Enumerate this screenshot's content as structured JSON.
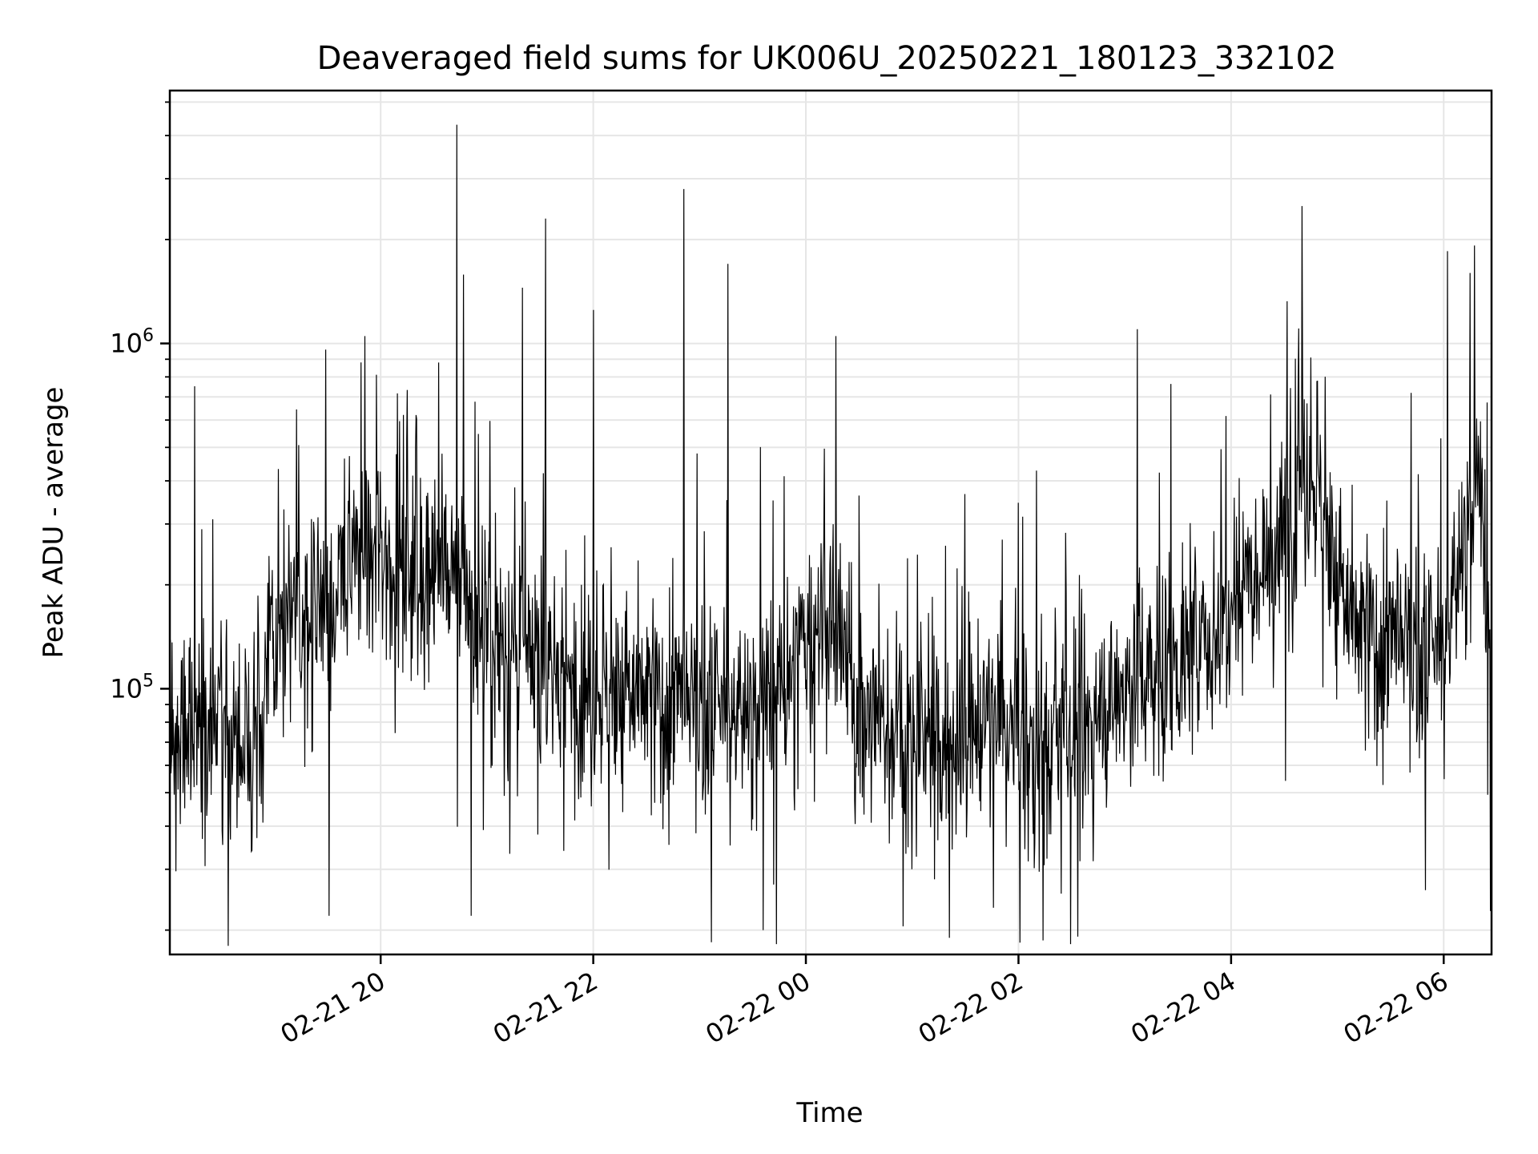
{
  "chart_data": {
    "type": "line",
    "title": "Deaveraged field sums for UK006U_20250221_180123_332102",
    "xlabel": "Time",
    "ylabel": "Peak ADU - average",
    "y_scale": "log",
    "ylim": [
      17000,
      5400000
    ],
    "xlim": [
      "2025-02-21 18:01",
      "2025-02-22 06:27"
    ],
    "grid": true,
    "line_color": "#000000",
    "grid_color": "#e6e6e6",
    "x_ticks": [
      {
        "value": "2025-02-21 20:00",
        "label": "02-21 20"
      },
      {
        "value": "2025-02-21 22:00",
        "label": "02-21 22"
      },
      {
        "value": "2025-02-22 00:00",
        "label": "02-22 00"
      },
      {
        "value": "2025-02-22 02:00",
        "label": "02-22 02"
      },
      {
        "value": "2025-02-22 04:00",
        "label": "02-22 04"
      },
      {
        "value": "2025-02-22 06:00",
        "label": "02-22 06"
      }
    ],
    "y_ticks": [
      {
        "value": 100000,
        "base": "10",
        "exp": "5"
      },
      {
        "value": 1000000,
        "base": "10",
        "exp": "6"
      }
    ],
    "series": [
      {
        "x": [
          "2025-02-21 18:01",
          "2025-02-21 18:10",
          "2025-02-21 18:20",
          "2025-02-21 18:30",
          "2025-02-21 18:40",
          "2025-02-21 18:50",
          "2025-02-21 19:00",
          "2025-02-21 19:10",
          "2025-02-21 19:20",
          "2025-02-21 19:30",
          "2025-02-21 19:40",
          "2025-02-21 19:50",
          "2025-02-21 20:00",
          "2025-02-21 20:10",
          "2025-02-21 20:20",
          "2025-02-21 20:30",
          "2025-02-21 20:40",
          "2025-02-21 20:50",
          "2025-02-21 21:00",
          "2025-02-21 21:10",
          "2025-02-21 21:20",
          "2025-02-21 21:30",
          "2025-02-21 21:40",
          "2025-02-21 21:50",
          "2025-02-21 22:00",
          "2025-02-21 22:10",
          "2025-02-21 22:20",
          "2025-02-21 22:30",
          "2025-02-21 22:40",
          "2025-02-21 22:50",
          "2025-02-21 23:00",
          "2025-02-21 23:10",
          "2025-02-21 23:20",
          "2025-02-21 23:30",
          "2025-02-21 23:40",
          "2025-02-21 23:50",
          "2025-02-22 00:00",
          "2025-02-22 00:10",
          "2025-02-22 00:20",
          "2025-02-22 00:30",
          "2025-02-22 00:40",
          "2025-02-22 00:50",
          "2025-02-22 01:00",
          "2025-02-22 01:10",
          "2025-02-22 01:20",
          "2025-02-22 01:30",
          "2025-02-22 01:40",
          "2025-02-22 01:50",
          "2025-02-22 02:00",
          "2025-02-22 02:10",
          "2025-02-22 02:20",
          "2025-02-22 02:30",
          "2025-02-22 02:40",
          "2025-02-22 02:50",
          "2025-02-22 03:00",
          "2025-02-22 03:10",
          "2025-02-22 03:20",
          "2025-02-22 03:30",
          "2025-02-22 03:40",
          "2025-02-22 03:50",
          "2025-02-22 04:00",
          "2025-02-22 04:10",
          "2025-02-22 04:20",
          "2025-02-22 04:30",
          "2025-02-22 04:40",
          "2025-02-22 04:50",
          "2025-02-22 05:00",
          "2025-02-22 05:10",
          "2025-02-22 05:20",
          "2025-02-22 05:30",
          "2025-02-22 05:40",
          "2025-02-22 05:50",
          "2025-02-22 06:00",
          "2025-02-22 06:10",
          "2025-02-22 06:20",
          "2025-02-22 06:27"
        ],
        "y": [
          60000,
          90000,
          85000,
          80000,
          75000,
          90000,
          130000,
          150000,
          170000,
          200000,
          190000,
          240000,
          250000,
          230000,
          240000,
          220000,
          210000,
          170000,
          150000,
          130000,
          120000,
          115000,
          110000,
          105000,
          100000,
          100000,
          95000,
          95000,
          90000,
          90000,
          85000,
          85000,
          85000,
          90000,
          95000,
          100000,
          140000,
          150000,
          130000,
          90000,
          80000,
          75000,
          70000,
          70000,
          70000,
          75000,
          80000,
          80000,
          70000,
          65000,
          70000,
          75000,
          80000,
          90000,
          100000,
          110000,
          110000,
          120000,
          130000,
          140000,
          200000,
          230000,
          250000,
          260000,
          450000,
          380000,
          200000,
          150000,
          140000,
          130000,
          130000,
          120000,
          130000,
          250000,
          400000,
          120000
        ],
        "peaks": [
          {
            "x": "2025-02-21 19:51",
            "y": 1050000
          },
          {
            "x": "2025-02-21 20:43",
            "y": 4300000
          },
          {
            "x": "2025-02-21 21:33",
            "y": 2300000
          },
          {
            "x": "2025-02-21 21:20",
            "y": 1450000
          },
          {
            "x": "2025-02-21 22:00",
            "y": 1250000
          },
          {
            "x": "2025-02-21 22:51",
            "y": 2800000
          },
          {
            "x": "2025-02-21 23:16",
            "y": 1700000
          },
          {
            "x": "2025-02-22 00:17",
            "y": 1050000
          },
          {
            "x": "2025-02-22 03:07",
            "y": 1100000
          },
          {
            "x": "2025-02-22 04:40",
            "y": 2500000
          },
          {
            "x": "2025-02-22 06:02",
            "y": 1850000
          },
          {
            "x": "2025-02-22 06:15",
            "y": 1600000
          }
        ],
        "troughs": [
          {
            "x": "2025-02-21 18:34",
            "y": 18000
          },
          {
            "x": "2025-02-21 20:51",
            "y": 22000
          },
          {
            "x": "2025-02-21 19:31",
            "y": 22000
          },
          {
            "x": "2025-02-21 23:36",
            "y": 20000
          },
          {
            "x": "2025-02-22 01:21",
            "y": 19000
          }
        ]
      }
    ]
  }
}
